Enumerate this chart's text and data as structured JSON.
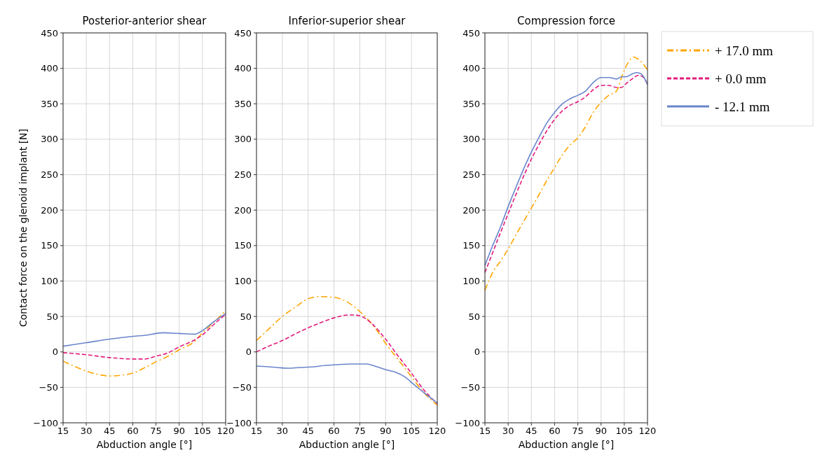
{
  "chart_data": [
    {
      "type": "line",
      "title": "Posterior-anterior shear",
      "xlabel": "Abduction angle [°]",
      "ylabel": "Contact force on the glenoid implant [N]",
      "xlim": [
        15,
        120
      ],
      "xticks": [
        15,
        30,
        45,
        60,
        75,
        90,
        105,
        120
      ],
      "ylim": [
        -100,
        450
      ],
      "yticks": [
        -100,
        -50,
        0,
        50,
        100,
        150,
        200,
        250,
        300,
        350,
        400,
        450
      ],
      "grid": true,
      "legend": false,
      "series": [
        {
          "color": "#ffa500",
          "line_style": "dotted",
          "x": [
            15,
            22,
            30,
            38,
            45,
            52,
            60,
            68,
            75,
            82,
            90,
            100,
            105,
            112,
            120
          ],
          "values": [
            -13,
            -20,
            -27,
            -32,
            -34,
            -33,
            -30,
            -22,
            -14,
            -7,
            3,
            15,
            27,
            41,
            58
          ]
        },
        {
          "color": "#e31a7c",
          "line_style": "dashed",
          "x": [
            15,
            30,
            45,
            60,
            68,
            75,
            82,
            90,
            100,
            105,
            112,
            120
          ],
          "values": [
            -1,
            -4,
            -8,
            -10,
            -10,
            -6,
            -2,
            7,
            17,
            24,
            38,
            53
          ]
        },
        {
          "color": "#6a85cc",
          "line_style": "solid",
          "x": [
            15,
            30,
            45,
            60,
            70,
            75,
            80,
            90,
            100,
            105,
            112,
            120
          ],
          "values": [
            8,
            13,
            18,
            22,
            24,
            26,
            27,
            26,
            25,
            30,
            42,
            54
          ]
        }
      ]
    },
    {
      "type": "line",
      "title": "Inferior-superior shear",
      "xlabel": "Abduction angle [°]",
      "xlim": [
        15,
        120
      ],
      "xticks": [
        15,
        30,
        45,
        60,
        75,
        90,
        105,
        120
      ],
      "ylim": [
        -100,
        450
      ],
      "yticks": [
        -100,
        -50,
        0,
        50,
        100,
        150,
        200,
        250,
        300,
        350,
        400,
        450
      ],
      "grid": true,
      "legend": false,
      "series": [
        {
          "color": "#ffa500",
          "line_style": "dotted",
          "x": [
            15,
            22,
            30,
            38,
            45,
            52,
            60,
            68,
            75,
            80,
            85,
            90,
            97,
            105,
            112,
            120
          ],
          "values": [
            16,
            32,
            50,
            64,
            75,
            78,
            77,
            70,
            57,
            45,
            30,
            12,
            -10,
            -35,
            -57,
            -75
          ]
        },
        {
          "color": "#e31a7c",
          "line_style": "dashed",
          "x": [
            15,
            22,
            30,
            38,
            45,
            52,
            60,
            68,
            72,
            77,
            82,
            90,
            97,
            105,
            112,
            120
          ],
          "values": [
            0,
            8,
            16,
            26,
            34,
            41,
            48,
            52,
            52,
            49,
            40,
            18,
            -5,
            -30,
            -53,
            -73
          ]
        },
        {
          "color": "#6a85cc",
          "line_style": "solid",
          "x": [
            15,
            22,
            27,
            33,
            40,
            48,
            55,
            62,
            70,
            79,
            85,
            90,
            96,
            101,
            106,
            112,
            120
          ],
          "values": [
            -20,
            -21,
            -22,
            -23,
            -22,
            -21,
            -19,
            -18,
            -17,
            -17,
            -21,
            -25,
            -29,
            -35,
            -45,
            -57,
            -72
          ]
        }
      ]
    },
    {
      "type": "line",
      "title": "Compression force",
      "xlabel": "Abduction angle [°]",
      "xlim": [
        15,
        120
      ],
      "xticks": [
        15,
        30,
        45,
        60,
        75,
        90,
        105,
        120
      ],
      "ylim": [
        -100,
        450
      ],
      "yticks": [
        -100,
        -50,
        0,
        50,
        100,
        150,
        200,
        250,
        300,
        350,
        400,
        450
      ],
      "grid": true,
      "legend": "right",
      "series": [
        {
          "name": "+ 17.0 mm",
          "color": "#ffa500",
          "line_style": "dotted",
          "x": [
            15,
            20,
            25,
            30,
            35,
            40,
            45,
            50,
            55,
            60,
            65,
            70,
            75,
            80,
            85,
            90,
            95,
            100,
            104,
            108,
            111,
            114,
            120
          ],
          "values": [
            87,
            112,
            128,
            145,
            165,
            184,
            203,
            222,
            242,
            260,
            278,
            292,
            302,
            318,
            338,
            352,
            362,
            368,
            392,
            410,
            416,
            413,
            398
          ]
        },
        {
          "name": "+ 0.0 mm",
          "color": "#e31a7c",
          "line_style": "dashed",
          "x": [
            15,
            20,
            25,
            30,
            35,
            40,
            45,
            50,
            55,
            60,
            65,
            70,
            75,
            80,
            85,
            90,
            95,
            100,
            103,
            106,
            110,
            114,
            117,
            120
          ],
          "values": [
            112,
            140,
            168,
            195,
            222,
            248,
            272,
            293,
            312,
            328,
            340,
            348,
            353,
            360,
            370,
            376,
            376,
            373,
            373,
            378,
            385,
            390,
            388,
            378
          ]
        },
        {
          "name": "- 12.1 mm",
          "color": "#6a85cc",
          "line_style": "solid",
          "x": [
            15,
            20,
            25,
            30,
            35,
            40,
            45,
            50,
            55,
            60,
            65,
            70,
            75,
            80,
            85,
            90,
            95,
            100,
            103,
            106,
            110,
            113,
            116,
            120
          ],
          "values": [
            122,
            150,
            176,
            205,
            232,
            258,
            282,
            303,
            323,
            338,
            350,
            357,
            362,
            368,
            380,
            387,
            387,
            385,
            388,
            388,
            392,
            394,
            392,
            377
          ]
        }
      ]
    }
  ]
}
